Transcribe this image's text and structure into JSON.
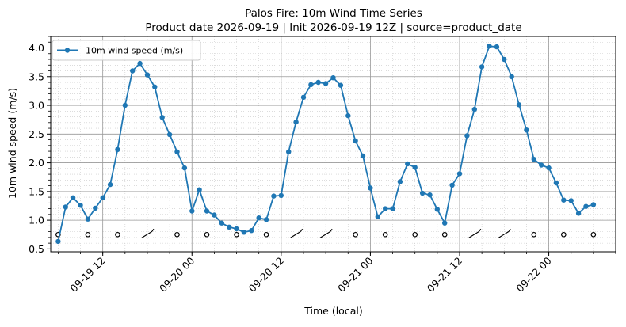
{
  "chart_data": {
    "type": "line",
    "title": "Palos Fire: 10m Wind Time Series",
    "subtitle": "Product date 2026-09-19 | Init 2026-09-19 12Z | source=product_date",
    "xlabel": "Time (local)",
    "ylabel": "10m wind speed (m/s)",
    "x_start": "2026-09-19 06:00",
    "x_step_hours": 1,
    "xlim": [
      "2026-09-19 05:00",
      "2026-09-22 09:00"
    ],
    "ylim": [
      0.45,
      4.2
    ],
    "y_ticks": [
      "0.5",
      "1.0",
      "1.5",
      "2.0",
      "2.5",
      "3.0",
      "3.5",
      "4.0"
    ],
    "x_ticks": [
      {
        "label": "09-19 12",
        "time": "2026-09-19 12:00"
      },
      {
        "label": "09-20 00",
        "time": "2026-09-20 00:00"
      },
      {
        "label": "09-20 12",
        "time": "2026-09-20 12:00"
      },
      {
        "label": "09-21 00",
        "time": "2026-09-21 00:00"
      },
      {
        "label": "09-21 12",
        "time": "2026-09-21 12:00"
      },
      {
        "label": "09-22 00",
        "time": "2026-09-22 00:00"
      }
    ],
    "grid": true,
    "legend_position": "top-left",
    "series": [
      {
        "name": "10m wind speed (m/s)",
        "color": "#1f77b4",
        "values": [
          0.63,
          1.23,
          1.39,
          1.26,
          1.02,
          1.21,
          1.39,
          1.62,
          2.23,
          3.0,
          3.6,
          3.73,
          3.53,
          3.32,
          2.79,
          2.49,
          2.19,
          1.91,
          1.16,
          1.53,
          1.16,
          1.09,
          0.95,
          0.88,
          0.85,
          0.79,
          0.82,
          1.04,
          1.01,
          1.42,
          1.43,
          2.19,
          2.71,
          3.14,
          3.36,
          3.4,
          3.38,
          3.48,
          3.35,
          2.82,
          2.38,
          2.12,
          1.56,
          1.06,
          1.2,
          1.2,
          1.67,
          1.98,
          1.92,
          1.47,
          1.44,
          1.19,
          0.95,
          1.61,
          1.81,
          2.47,
          2.93,
          3.67,
          4.03,
          4.02,
          3.8,
          3.5,
          3.01,
          2.57,
          2.06,
          1.96,
          1.91,
          1.65,
          1.35,
          1.34,
          1.12,
          1.24,
          1.27
        ]
      }
    ],
    "wind_barbs": {
      "y_level": 0.75,
      "every_hours": 4,
      "glyphs": [
        "calm",
        "calm",
        "calm",
        "barb",
        "calm",
        "calm",
        "calm",
        "calm",
        "barb",
        "barb",
        "calm",
        "calm",
        "calm",
        "calm",
        "barb",
        "barb",
        "calm",
        "calm",
        "calm"
      ]
    }
  }
}
